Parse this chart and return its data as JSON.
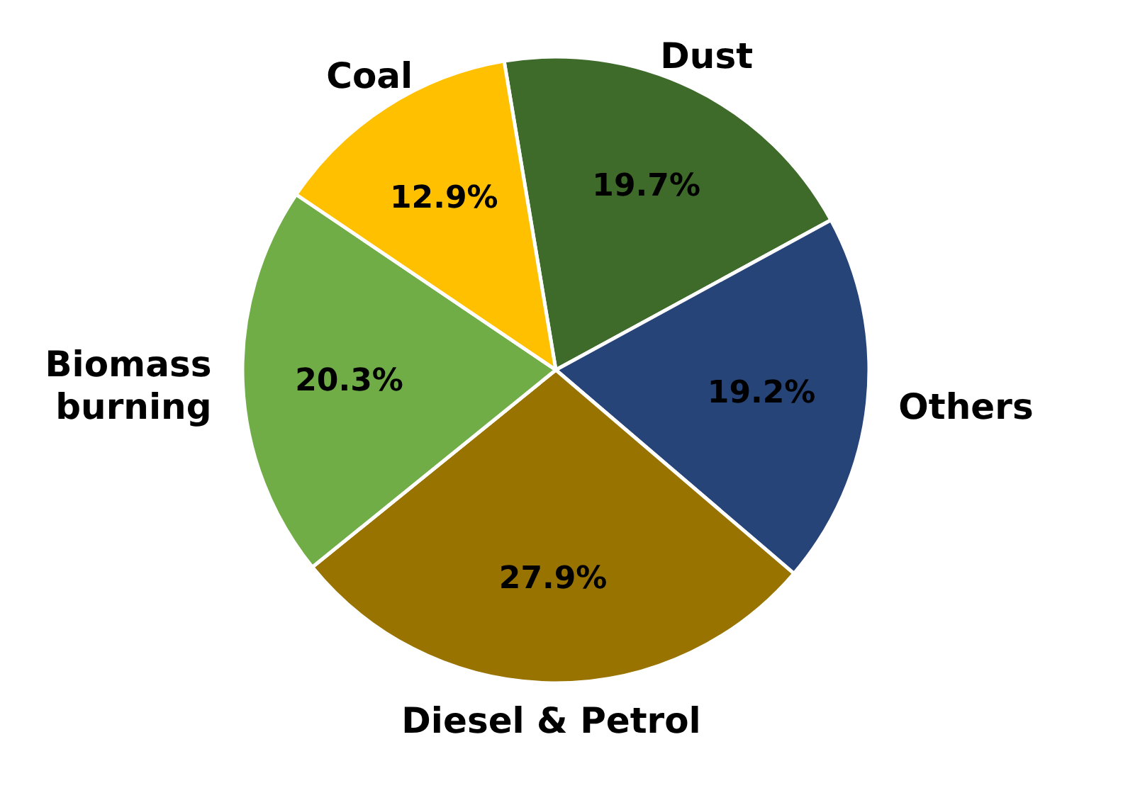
{
  "chart_data": {
    "type": "pie",
    "categories": [
      "Dust",
      "Others",
      "Diesel & Petrol",
      "Biomass burning",
      "Coal"
    ],
    "values": [
      19.7,
      19.2,
      27.9,
      20.3,
      12.9
    ],
    "colors": [
      "#3f6b2a",
      "#264478",
      "#997300",
      "#70ad47",
      "#ffc000"
    ],
    "value_labels": [
      "19.7%",
      "19.2%",
      "27.9%",
      "20.3%",
      "12.9%"
    ]
  }
}
